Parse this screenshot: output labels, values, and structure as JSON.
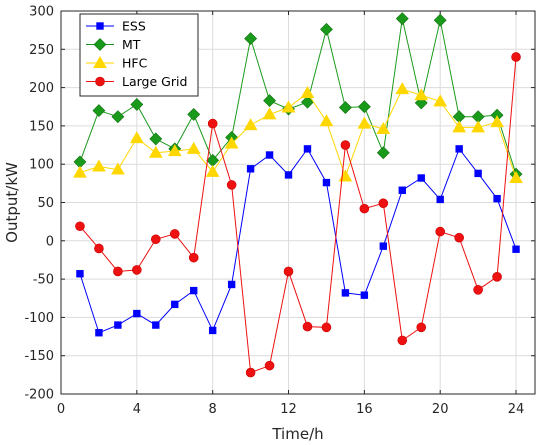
{
  "chart_data": {
    "type": "line",
    "title": "",
    "xlabel": "Time/h",
    "ylabel": "Output/kW",
    "xlim": [
      0,
      25
    ],
    "ylim": [
      -200,
      300
    ],
    "xticks": [
      0,
      4,
      8,
      12,
      16,
      20,
      24
    ],
    "yticks": [
      -200,
      -150,
      -100,
      -50,
      0,
      50,
      100,
      150,
      200,
      250,
      300
    ],
    "grid": true,
    "legend_position": "top-left",
    "x": [
      1,
      2,
      3,
      4,
      5,
      6,
      7,
      8,
      9,
      10,
      11,
      12,
      13,
      14,
      15,
      16,
      17,
      18,
      19,
      20,
      21,
      22,
      23,
      24
    ],
    "series": [
      {
        "name": "ESS",
        "color": "#0000ff",
        "marker": "square",
        "values": [
          -43,
          -120,
          -110,
          -95,
          -110,
          -83,
          -65,
          -117,
          -57,
          94,
          112,
          86,
          120,
          76,
          -68,
          -71,
          -7,
          66,
          82,
          54,
          120,
          88,
          55,
          -11
        ]
      },
      {
        "name": "MT",
        "color": "#1a9a1a",
        "marker": "diamond",
        "values": [
          103,
          170,
          162,
          178,
          133,
          120,
          165,
          105,
          135,
          264,
          183,
          172,
          181,
          276,
          174,
          175,
          115,
          290,
          180,
          288,
          162,
          162,
          164,
          87
        ]
      },
      {
        "name": "HFC",
        "color": "#ffd700",
        "marker": "triangle",
        "values": [
          89,
          97,
          93,
          134,
          115,
          117,
          120,
          90,
          127,
          151,
          165,
          174,
          193,
          156,
          84,
          153,
          146,
          198,
          190,
          182,
          148,
          148,
          155,
          82
        ]
      },
      {
        "name": "Large Grid",
        "color": "#ee1111",
        "marker": "circle",
        "values": [
          19,
          -10,
          -40,
          -38,
          2,
          9,
          -22,
          153,
          73,
          -172,
          -163,
          -40,
          -112,
          -113,
          125,
          42,
          49,
          -130,
          -113,
          12,
          4,
          -64,
          -47,
          240
        ]
      }
    ]
  }
}
